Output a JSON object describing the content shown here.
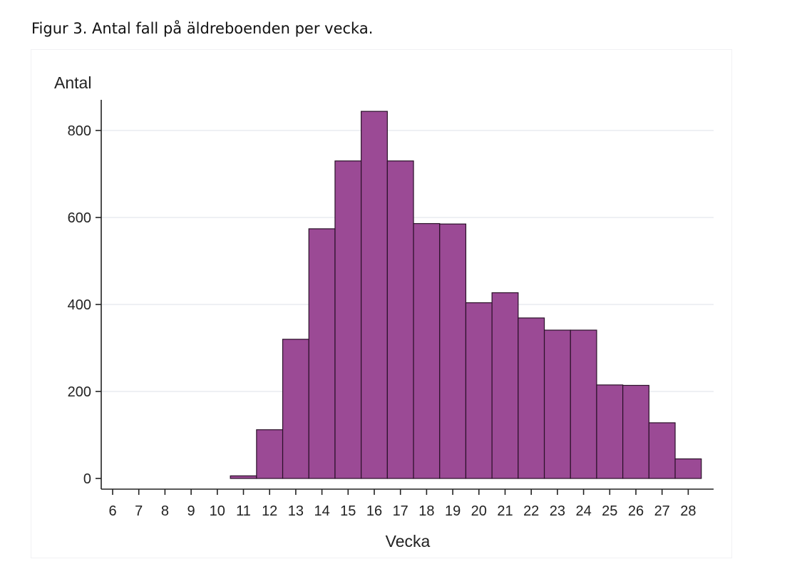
{
  "caption": "Figur 3. Antal fall på äldreboenden per vecka.",
  "colors": {
    "bar_fill": "#9b4a95",
    "bar_stroke": "#2a1028",
    "grid": "#eef0f4",
    "axis": "#222222"
  },
  "chart_data": {
    "type": "bar",
    "title": "",
    "xlabel": "Vecka",
    "ylabel": "Antal",
    "grid": true,
    "legend": "none",
    "ylim": [
      0,
      870
    ],
    "yticks": [
      0,
      200,
      400,
      600,
      800
    ],
    "categories": [
      "6",
      "7",
      "8",
      "9",
      "10",
      "11",
      "12",
      "13",
      "14",
      "15",
      "16",
      "17",
      "18",
      "19",
      "20",
      "21",
      "22",
      "23",
      "24",
      "25",
      "26",
      "27",
      "28"
    ],
    "values": [
      0,
      0,
      0,
      0,
      0,
      6,
      112,
      320,
      574,
      730,
      844,
      730,
      586,
      585,
      404,
      427,
      369,
      341,
      341,
      215,
      214,
      128,
      45
    ]
  }
}
